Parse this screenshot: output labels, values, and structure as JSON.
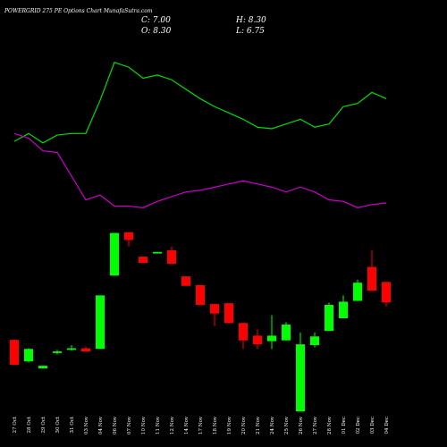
{
  "chart_data": {
    "type": "candlestick",
    "title": "POWERGRID 275 PE Options Chart MunafaSutra.com",
    "header": {
      "close": "C: 7.00",
      "open": "O: 8.30",
      "high": "H: 8.30",
      "low": "L: 6.75"
    },
    "categories": [
      "27 Oct",
      "28 Oct",
      "29 Oct",
      "30 Oct",
      "31 Oct",
      "03 Nov",
      "04 Nov",
      "06 Nov",
      "07 Nov",
      "10 Nov",
      "11 Nov",
      "12 Nov",
      "14 Nov",
      "17 Nov",
      "18 Nov",
      "19 Nov",
      "20 Nov",
      "21 Nov",
      "24 Nov",
      "25 Nov",
      "26 Nov",
      "27 Nov",
      "28 Nov",
      "01 Dec",
      "02 Dec",
      "03 Dec",
      "04 Dec"
    ],
    "open": [
      4.63,
      3.27,
      2.82,
      3.8,
      4.0,
      4.1,
      4.06,
      8.7,
      11.45,
      9.9,
      10.1,
      10.3,
      8.65,
      8.1,
      6.9,
      6.95,
      5.7,
      4.9,
      4.55,
      4.6,
      0.1,
      4.3,
      5.2,
      6.0,
      7.1,
      9.25,
      8.3
    ],
    "high": [
      4.63,
      4.1,
      2.99,
      4.0,
      4.3,
      4.2,
      7.45,
      11.4,
      11.45,
      9.9,
      10.2,
      10.55,
      8.65,
      8.1,
      6.9,
      6.95,
      5.7,
      5.3,
      6.2,
      5.75,
      5.1,
      5.1,
      7.0,
      7.45,
      8.45,
      10.3,
      8.3
    ],
    "low": [
      3.05,
      3.2,
      2.82,
      3.7,
      3.95,
      3.9,
      4.06,
      8.7,
      10.55,
      9.5,
      10.1,
      9.45,
      8.05,
      6.85,
      5.5,
      5.7,
      4.05,
      4.05,
      4.05,
      4.6,
      0.1,
      4.15,
      5.2,
      6.0,
      7.1,
      7.75,
      6.75
    ],
    "close": [
      3.05,
      4.06,
      2.99,
      3.9,
      4.1,
      3.9,
      7.45,
      11.4,
      10.95,
      9.5,
      10.2,
      9.45,
      8.05,
      6.85,
      6.3,
      5.7,
      4.6,
      4.35,
      4.9,
      5.6,
      4.35,
      4.85,
      6.85,
      7.05,
      8.25,
      7.75,
      7.0
    ],
    "up_color": "#00ff00",
    "down_color": "#ff0000",
    "series": [
      {
        "color": "#00dd00",
        "values": [
          17.2,
          17.7,
          17.1,
          17.6,
          17.7,
          17.7,
          19.8,
          22.2,
          21.9,
          21.2,
          21.4,
          21.1,
          20.5,
          19.9,
          19.4,
          19.0,
          18.6,
          18.1,
          18.0,
          18.3,
          18.6,
          18.1,
          18.3,
          19.4,
          19.6,
          20.3,
          19.9
        ]
      },
      {
        "color": "#cc00cc",
        "values": [
          17.7,
          17.4,
          16.6,
          16.5,
          15.0,
          13.5,
          13.8,
          13.1,
          13.1,
          13.0,
          13.4,
          13.7,
          14.0,
          14.1,
          14.3,
          14.5,
          14.7,
          14.5,
          14.3,
          14.0,
          14.3,
          14.0,
          13.5,
          13.4,
          13.0,
          13.2,
          13.3
        ]
      }
    ],
    "ylim": [
      0,
      24
    ]
  }
}
